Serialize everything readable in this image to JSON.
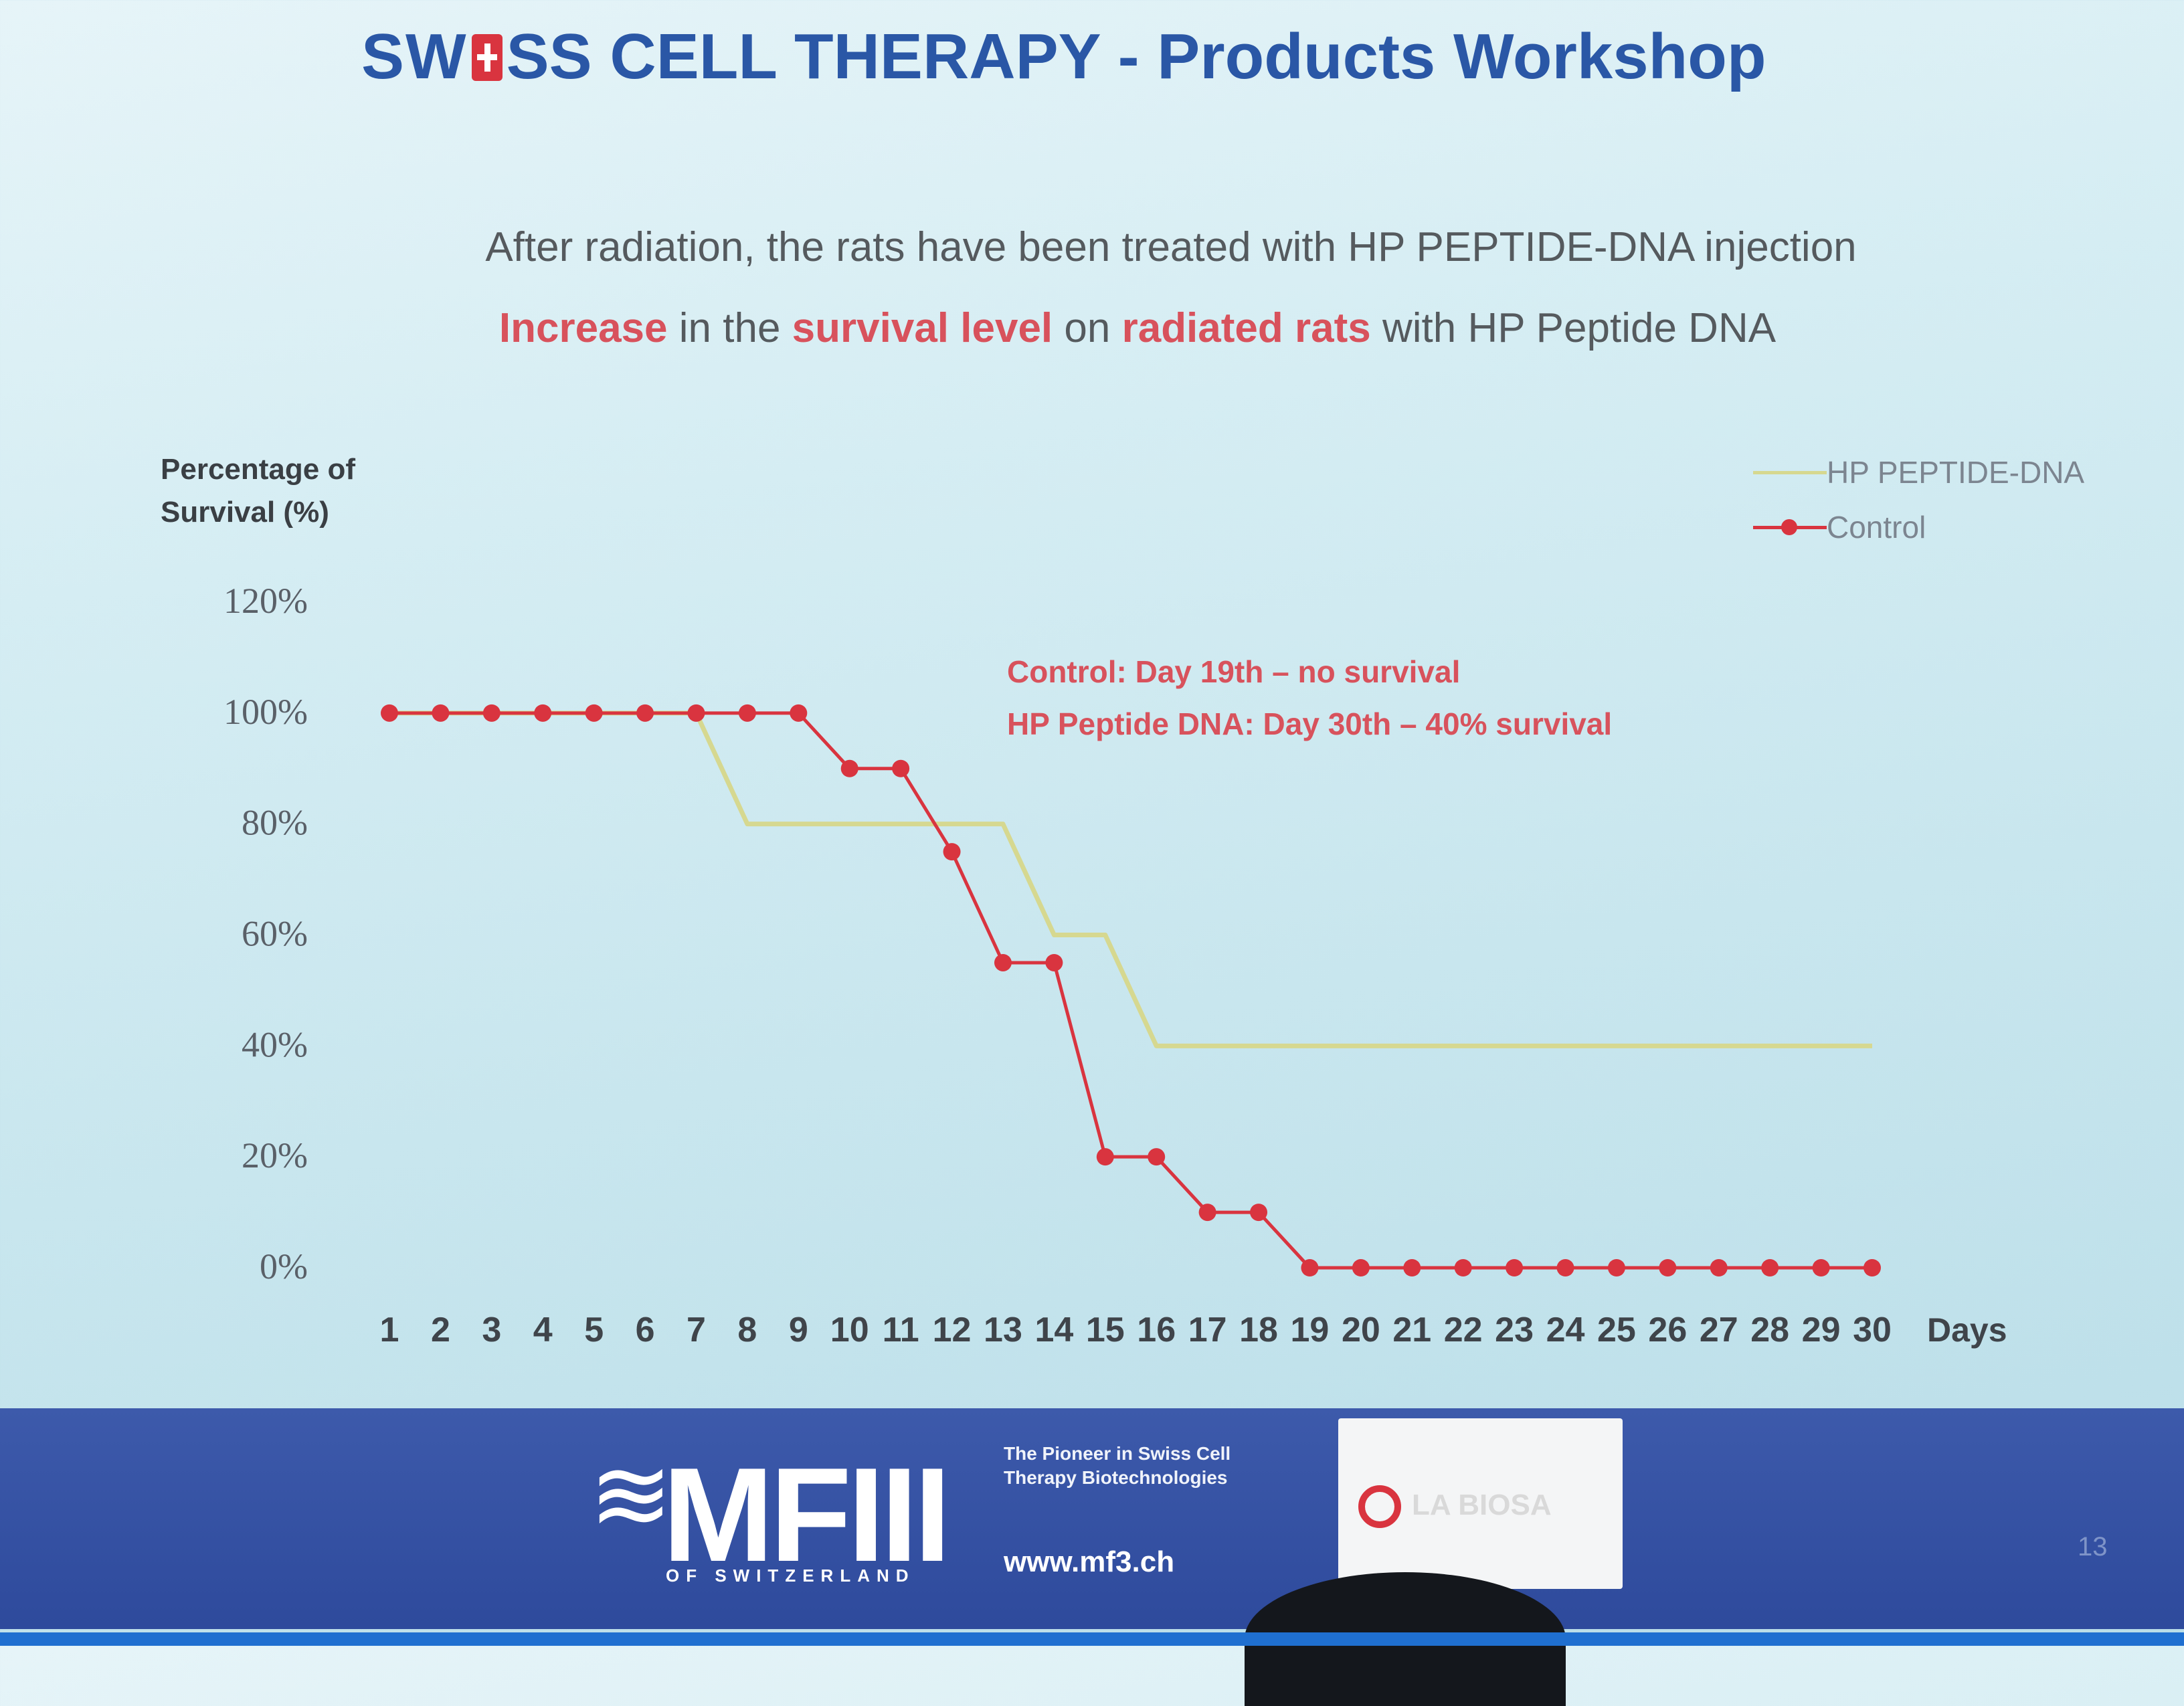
{
  "slide": {
    "title_pre": "SW",
    "title_post": "SS CELL THERAPY - Products Workshop",
    "subtitle_line1": "After radiation, the rats have been treated with HP PEPTIDE-DNA injection",
    "subtitle_line2": {
      "p1": "Increase",
      "p2": " in the ",
      "p3": "survival level",
      "p4": " on ",
      "p5": "radiated rats",
      "p6": " with HP Peptide DNA"
    },
    "annotation_line1": "Control:  Day 19th – no survival",
    "annotation_line2": "HP Peptide DNA:  Day 30th – 40% survival",
    "page_number": "13"
  },
  "footer": {
    "logo_waves": "≋",
    "logo_text": "MFIII",
    "logo_small": "OF SWITZERLAND",
    "tagline": "The Pioneer in Swiss Cell Therapy Biotechnologies",
    "url": "www.mf3.ch",
    "partner_name": "LA BIOSA"
  },
  "colors": {
    "hp": "#d6d890",
    "control": "#d9343f",
    "title": "#2a57a6"
  },
  "chart_data": {
    "type": "line",
    "ylabel": "Percentage of Survival (%)",
    "xlabel": "Days",
    "y_ticks": [
      "0%",
      "20%",
      "40%",
      "60%",
      "80%",
      "100%",
      "120%"
    ],
    "ylim": [
      0,
      120
    ],
    "x": [
      1,
      2,
      3,
      4,
      5,
      6,
      7,
      8,
      9,
      10,
      11,
      12,
      13,
      14,
      15,
      16,
      17,
      18,
      19,
      20,
      21,
      22,
      23,
      24,
      25,
      26,
      27,
      28,
      29,
      30
    ],
    "series": [
      {
        "name": "HP PEPTIDE-DNA",
        "color": "#d6d890",
        "markers": false,
        "values": [
          100,
          100,
          100,
          100,
          100,
          100,
          100,
          80,
          80,
          80,
          80,
          80,
          80,
          60,
          60,
          40,
          40,
          40,
          40,
          40,
          40,
          40,
          40,
          40,
          40,
          40,
          40,
          40,
          40,
          40
        ]
      },
      {
        "name": "Control",
        "color": "#d9343f",
        "markers": true,
        "values": [
          100,
          100,
          100,
          100,
          100,
          100,
          100,
          100,
          100,
          90,
          90,
          75,
          55,
          55,
          20,
          20,
          10,
          10,
          0,
          0,
          0,
          0,
          0,
          0,
          0,
          0,
          0,
          0,
          0,
          0
        ]
      }
    ],
    "grid": false,
    "legend_position": "top-right"
  }
}
